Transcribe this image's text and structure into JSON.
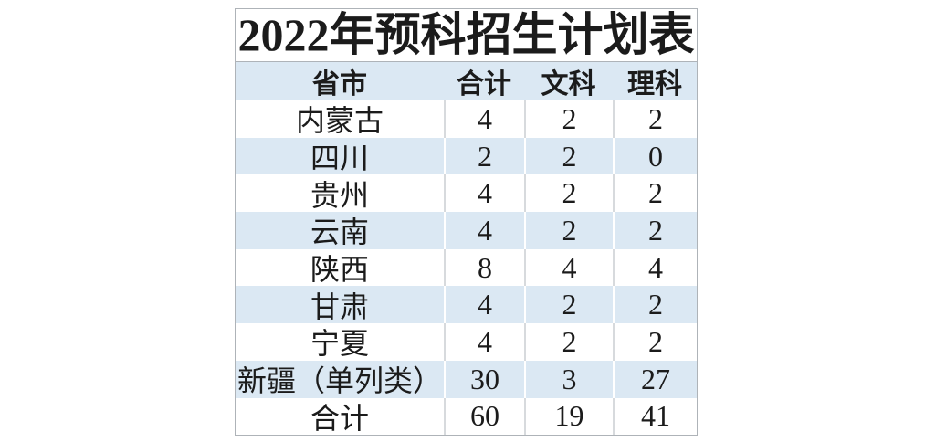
{
  "chart_data": {
    "type": "table",
    "title": "2022年预科招生计划表",
    "columns": [
      "省市",
      "合计",
      "文科",
      "理科"
    ],
    "rows": [
      [
        "内蒙古",
        4,
        2,
        2
      ],
      [
        "四川",
        2,
        2,
        0
      ],
      [
        "贵州",
        4,
        2,
        2
      ],
      [
        "云南",
        4,
        2,
        2
      ],
      [
        "陕西",
        8,
        4,
        4
      ],
      [
        "甘肃",
        4,
        2,
        2
      ],
      [
        "宁夏",
        4,
        2,
        2
      ],
      [
        "新疆（单列类）",
        30,
        3,
        27
      ],
      [
        "合计",
        60,
        19,
        41
      ]
    ],
    "layout_hints": {
      "row_banding": "alternating white and light blue, header blue, totals row white",
      "alignment": "all cells centered",
      "gridlines": "vertical separators only, outer thin gray border"
    }
  },
  "colors": {
    "band_blue": "#dbe8f3",
    "sep_gray": "#d7dadd",
    "border_gray": "#aeb3b8",
    "text_color": "#1b1b1b"
  }
}
